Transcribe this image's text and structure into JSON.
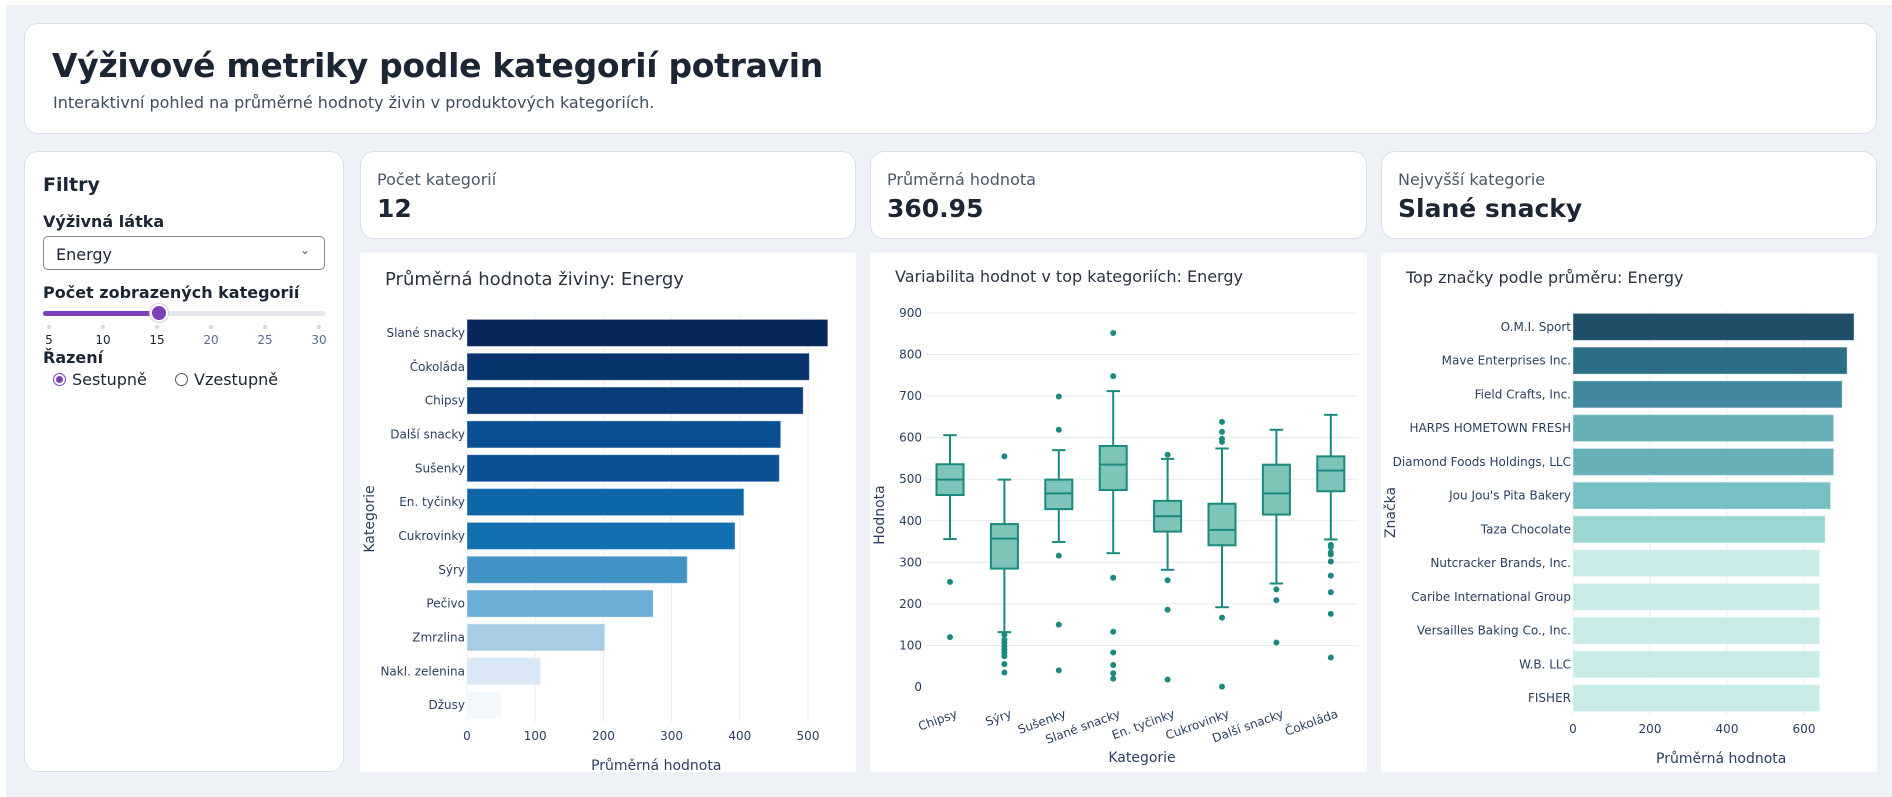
{
  "header": {
    "title": "Výživové metriky podle kategorií potravin",
    "subtitle": "Interaktivní pohled na průměrné hodnoty živin v produktových kategoriích."
  },
  "sidebar": {
    "title": "Filtry",
    "nutrient_label": "Výživná látka",
    "nutrient_value": "Energy",
    "nutrient_chevron": "⌄",
    "count_label": "Počet zobrazených kategorií",
    "count_value": 15,
    "count_min": 5,
    "count_max": 30,
    "count_ticks": [
      "5",
      "10",
      "15",
      "20",
      "25",
      "30"
    ],
    "sort_label": "Řazení",
    "sort_options": [
      {
        "label": "Sestupně",
        "selected": true
      },
      {
        "label": "Vzestupně",
        "selected": false
      }
    ]
  },
  "kpis": [
    {
      "label": "Počet kategorií",
      "value": "12"
    },
    {
      "label": "Průměrná hodnota",
      "value": "360.95"
    },
    {
      "label": "Nejvyšší kategorie",
      "value": "Slané snacky"
    }
  ],
  "colors": {
    "accent": "#7b3fb8",
    "box": "#1a8a7e",
    "box_fill": "#7fc4b9",
    "grid": "#e6ebf2"
  },
  "chart_data": [
    {
      "type": "bar",
      "orientation": "horizontal",
      "title": "Průměrná hodnota živiny: Energy",
      "xlabel": "Průměrná hodnota",
      "ylabel": "Kategorie",
      "xlim": [
        0,
        555
      ],
      "xticks": [
        "0",
        "100",
        "200",
        "300",
        "400",
        "500"
      ],
      "grid": true,
      "categories": [
        "Slané snacky",
        "Čokoláda",
        "Chipsy",
        "Další snacky",
        "Sušenky",
        "En. tyčinky",
        "Cukrovinky",
        "Sýry",
        "Pečivo",
        "Zmrzlina",
        "Nakl. zelenina",
        "Džusy"
      ],
      "values": [
        529,
        502,
        493,
        460,
        458,
        406,
        393,
        323,
        273,
        202,
        108,
        50
      ],
      "colors": [
        "#08285a",
        "#08346e",
        "#083d7a",
        "#0a4f94",
        "#0b4f94",
        "#0e66a9",
        "#1270b0",
        "#4292c6",
        "#6aaed6",
        "#a6cde3",
        "#dae8f5",
        "#f3f8fd"
      ]
    },
    {
      "type": "box",
      "title": "Variabilita hodnot v top kategoriích: Energy",
      "xlabel": "Kategorie",
      "ylabel": "Hodnota",
      "ylim": [
        -60,
        920
      ],
      "yticks": [
        "0",
        "100",
        "200",
        "300",
        "400",
        "500",
        "600",
        "700",
        "800",
        "900"
      ],
      "grid": true,
      "categories": [
        "Chipsy",
        "Sýry",
        "Sušenky",
        "Slané snacky",
        "En. tyčinky",
        "Cukrovinky",
        "Další snacky",
        "Čokoláda"
      ],
      "boxes": [
        {
          "lower": 356,
          "q1": 462,
          "median": 499,
          "q3": 536,
          "upper": 606,
          "outliers": [
            253,
            120
          ]
        },
        {
          "lower": 132,
          "q1": 285,
          "median": 357,
          "q3": 392,
          "upper": 499,
          "outliers": [
            555,
            126,
            114,
            106,
            98,
            90,
            82,
            74,
            55,
            35
          ]
        },
        {
          "lower": 349,
          "q1": 428,
          "median": 466,
          "q3": 499,
          "upper": 570,
          "outliers": [
            699,
            619,
            316,
            150,
            40
          ]
        },
        {
          "lower": 322,
          "q1": 474,
          "median": 535,
          "q3": 580,
          "upper": 712,
          "outliers": [
            852,
            748,
            263,
            133,
            83,
            53,
            33,
            20
          ]
        },
        {
          "lower": 282,
          "q1": 374,
          "median": 411,
          "q3": 448,
          "upper": 549,
          "outliers": [
            559,
            257,
            186,
            18
          ]
        },
        {
          "lower": 192,
          "q1": 341,
          "median": 378,
          "q3": 441,
          "upper": 574,
          "outliers": [
            638,
            614,
            597,
            590,
            167,
            1
          ]
        },
        {
          "lower": 249,
          "q1": 415,
          "median": 466,
          "q3": 535,
          "upper": 619,
          "outliers": [
            235,
            209,
            107
          ]
        },
        {
          "lower": 355,
          "q1": 471,
          "median": 521,
          "q3": 555,
          "upper": 655,
          "outliers": [
            342,
            337,
            324,
            319,
            302,
            268,
            228,
            176,
            71
          ]
        }
      ]
    },
    {
      "type": "bar",
      "orientation": "horizontal",
      "title": "Top značky podle průměru: Energy",
      "xlabel": "Průměrná hodnota",
      "ylabel": "Značka",
      "xlim": [
        0,
        770
      ],
      "xticks": [
        "0",
        "200",
        "400",
        "600"
      ],
      "grid": true,
      "categories": [
        "O.M.I. Sport",
        "Mave Enterprises Inc.",
        "Field Crafts, Inc.",
        "HARPS HOMETOWN FRESH",
        "Diamond Foods Holdings, LLC",
        "Jou Jou's Pita Bakery",
        "Taza Chocolate",
        "Nutcracker Brands, Inc.",
        "Caribe International Group",
        "Versailles Baking Co., Inc.",
        "W.B. LLC",
        "FISHER"
      ],
      "values": [
        730,
        712,
        699,
        677,
        677,
        669,
        655,
        641,
        641,
        641,
        641,
        641
      ],
      "colors": [
        "#1f4e69",
        "#2d6e87",
        "#3f889d",
        "#66b0b8",
        "#66b0b8",
        "#76bfc3",
        "#9bd6d3",
        "#c9ebe7",
        "#c9ebe7",
        "#c9ebe7",
        "#c9ebe7",
        "#c9ebe7"
      ]
    }
  ]
}
